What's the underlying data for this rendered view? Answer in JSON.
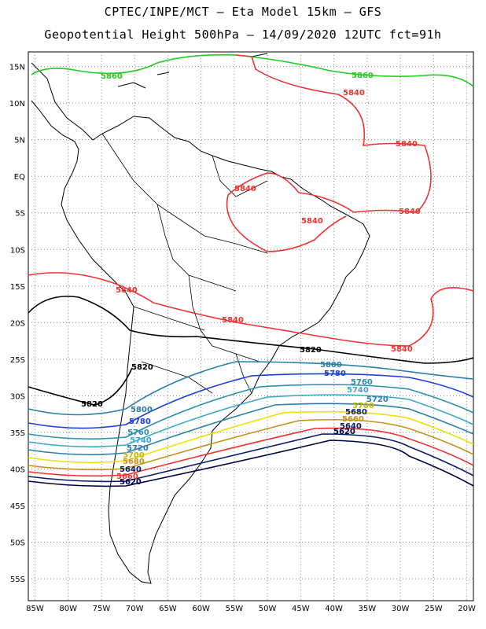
{
  "header": {
    "line1": "CPTEC/INPE/MCT –  Eta Model 15km – GFS",
    "line2": "Geopotential Height 500hPa – 14/09/2020 12UTC fct=91h"
  },
  "axes": {
    "lon_ticks": [
      "85W",
      "80W",
      "75W",
      "70W",
      "65W",
      "60W",
      "55W",
      "50W",
      "45W",
      "40W",
      "35W",
      "30W",
      "25W",
      "20W"
    ],
    "lat_ticks": [
      "15N",
      "10N",
      "5N",
      "EQ",
      "5S",
      "10S",
      "15S",
      "20S",
      "25S",
      "30S",
      "35S",
      "40S",
      "45S",
      "50S",
      "55S"
    ],
    "lon_range": [
      -86,
      -19
    ],
    "lat_range": [
      17,
      -58
    ],
    "grid": "dotted"
  },
  "contours": [
    {
      "value": "5860",
      "color": "#22cc22"
    },
    {
      "value": "5840",
      "color": "#ee3333"
    },
    {
      "value": "5820",
      "color": "#000000"
    },
    {
      "value": "5800",
      "color": "#2a7fa8"
    },
    {
      "value": "5780",
      "color": "#1a3fdd"
    },
    {
      "value": "5760",
      "color": "#2a8fb0"
    },
    {
      "value": "5740",
      "color": "#39a9c9"
    },
    {
      "value": "5720",
      "color": "#2a7fa8"
    },
    {
      "value": "5700",
      "color": "#f0e000"
    },
    {
      "value": "5680",
      "color": "#c89018"
    },
    {
      "value": "5660",
      "color": "#ee3333"
    },
    {
      "value": "5640",
      "color": "#0a1a6a"
    },
    {
      "value": "5620",
      "color": "#000044"
    }
  ]
}
